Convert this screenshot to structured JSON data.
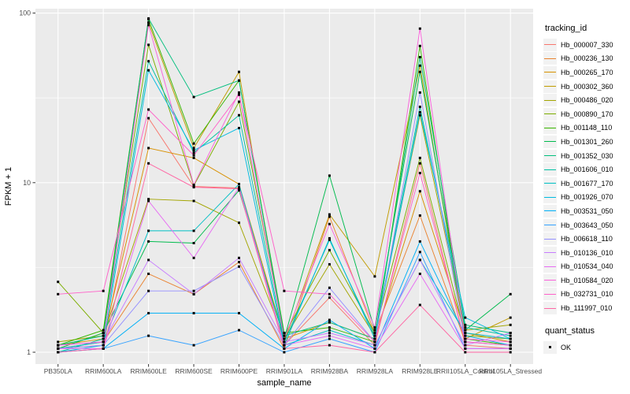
{
  "figure": {
    "panel_bg": "#EBEBEB",
    "grid_color": "#FFFFFF",
    "axis_text_color": "#4D4D4D",
    "tick_color": "#333333",
    "point_color": "#000000"
  },
  "axes": {
    "x_title": "sample_name",
    "y_title": "FPKM + 1",
    "y_tick_labels": [
      "1",
      "10",
      "100"
    ],
    "y_tick_values": [
      1,
      10,
      100
    ]
  },
  "legend": {
    "tracking_title": "tracking_id",
    "quant_title": "quant_status",
    "quant_items": [
      {
        "label": "OK",
        "marker": "black-square"
      }
    ]
  },
  "chart_data": {
    "type": "line",
    "title": "",
    "xlabel": "sample_name",
    "ylabel": "FPKM + 1",
    "y_scale": "log10",
    "ylim": [
      1,
      100
    ],
    "grid": true,
    "legend_position": "right",
    "point_marker": "black square (quant_status = OK)",
    "categories": [
      "PB350LA",
      "RRIM600LA",
      "RRIM600LE",
      "RRIM600SE",
      "RRIM600PE",
      "RRIM901LA",
      "RRIM928BA",
      "RRIM928LA",
      "RRIM928LE",
      "RRII105LA_Control",
      "RRII105LA_Stressed"
    ],
    "series": [
      {
        "name": "Hb_000007_330",
        "color": "#F8766D",
        "values": [
          1.05,
          1.1,
          24,
          9.5,
          9.3,
          1.1,
          2.1,
          1.1,
          13,
          1.1,
          1.05
        ]
      },
      {
        "name": "Hb_000236_130",
        "color": "#EA8331",
        "values": [
          1.05,
          1.15,
          2.9,
          2.2,
          3.4,
          1.05,
          6.3,
          1.3,
          6.4,
          1.15,
          1.1
        ]
      },
      {
        "name": "Hb_000265_170",
        "color": "#D89000",
        "values": [
          1.1,
          1.2,
          16,
          14,
          9.8,
          1.2,
          1.5,
          1.2,
          8.9,
          1.3,
          1.15
        ]
      },
      {
        "name": "Hb_000302_360",
        "color": "#C09B00",
        "values": [
          1.05,
          1.3,
          88,
          16,
          45,
          1.15,
          6.5,
          2.8,
          49,
          1.2,
          1.6
        ]
      },
      {
        "name": "Hb_000486_020",
        "color": "#A3A500",
        "values": [
          1.15,
          1.25,
          8.0,
          7.8,
          5.8,
          1.2,
          3.3,
          1.25,
          25,
          1.35,
          1.45
        ]
      },
      {
        "name": "Hb_000890_170",
        "color": "#7CAE00",
        "values": [
          2.6,
          1.3,
          65,
          9.6,
          30,
          1.25,
          4.0,
          1.3,
          14,
          1.25,
          1.2
        ]
      },
      {
        "name": "Hb_001148_110",
        "color": "#39B600",
        "values": [
          1.1,
          1.35,
          92,
          17,
          40,
          1.3,
          1.4,
          1.15,
          64,
          1.2,
          1.1
        ]
      },
      {
        "name": "Hb_001301_260",
        "color": "#00BB4E",
        "values": [
          1.05,
          1.3,
          4.5,
          4.4,
          9.0,
          1.2,
          11,
          1.35,
          45,
          1.35,
          2.2
        ]
      },
      {
        "name": "Hb_001352_030",
        "color": "#00BF7D",
        "values": [
          1.1,
          1.25,
          93,
          32,
          40,
          1.25,
          1.5,
          1.2,
          55,
          1.45,
          1.3
        ]
      },
      {
        "name": "Hb_001606_010",
        "color": "#00C1A3",
        "values": [
          1.0,
          1.2,
          52,
          15,
          25,
          1.15,
          4.6,
          1.25,
          28,
          1.4,
          1.25
        ]
      },
      {
        "name": "Hb_001677_170",
        "color": "#00BFC4",
        "values": [
          1.05,
          1.15,
          5.2,
          5.2,
          9.8,
          1.1,
          1.35,
          1.1,
          3.5,
          1.3,
          1.2
        ]
      },
      {
        "name": "Hb_001926_070",
        "color": "#00BAE0",
        "values": [
          1.0,
          1.1,
          46,
          15.5,
          21,
          1.1,
          4.7,
          1.2,
          26,
          1.6,
          1.2
        ]
      },
      {
        "name": "Hb_003531_050",
        "color": "#00B0F6",
        "values": [
          1.0,
          1.05,
          1.7,
          1.7,
          1.7,
          1.05,
          1.55,
          1.05,
          4.5,
          1.25,
          1.1
        ]
      },
      {
        "name": "Hb_003643_050",
        "color": "#35A2FF",
        "values": [
          1.0,
          1.05,
          1.25,
          1.1,
          1.35,
          1.0,
          1.2,
          1.0,
          3.9,
          1.05,
          1.05
        ]
      },
      {
        "name": "Hb_006618_110",
        "color": "#9590FF",
        "values": [
          1.05,
          1.1,
          2.3,
          2.3,
          3.2,
          1.1,
          2.4,
          1.15,
          34,
          1.15,
          1.1
        ]
      },
      {
        "name": "Hb_010136_010",
        "color": "#C77CFF",
        "values": [
          1.1,
          1.15,
          3.5,
          2.2,
          3.6,
          1.15,
          1.3,
          1.1,
          3.5,
          1.1,
          1.3
        ]
      },
      {
        "name": "Hb_010534_040",
        "color": "#E76BF3",
        "values": [
          1.05,
          1.05,
          7.8,
          3.6,
          9.4,
          1.1,
          1.25,
          1.05,
          2.9,
          1.05,
          1.05
        ]
      },
      {
        "name": "Hb_010584_020",
        "color": "#FA62DB",
        "values": [
          1.1,
          1.15,
          85,
          9.7,
          34,
          1.2,
          5.7,
          1.4,
          81,
          1.2,
          1.15
        ]
      },
      {
        "name": "Hb_032731_010",
        "color": "#FF61C9",
        "values": [
          2.2,
          2.3,
          27,
          14.5,
          33,
          2.3,
          2.2,
          1.15,
          11.4,
          1.15,
          1.1
        ]
      },
      {
        "name": "Hb_111997_010",
        "color": "#FF67A4",
        "values": [
          1.0,
          1.05,
          13,
          9.4,
          9.2,
          1.05,
          1.1,
          1.0,
          1.9,
          1.0,
          1.0
        ]
      }
    ]
  }
}
